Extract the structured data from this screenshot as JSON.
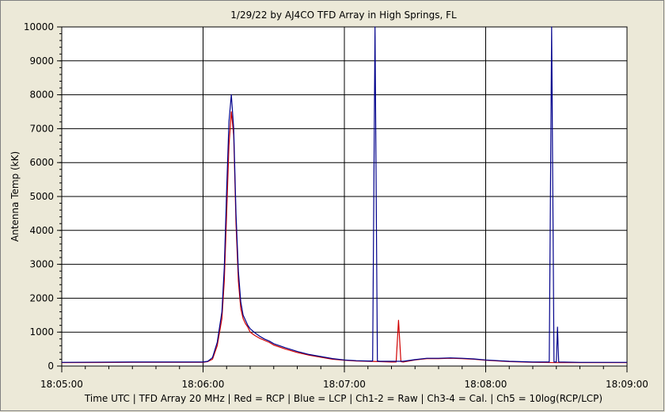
{
  "chart_data": {
    "type": "line",
    "title": "1/29/22  by  AJ4CO TFD Array  in  High Springs, FL",
    "xlabel": "Time UTC | TFD Array 20 MHz | Red = RCP | Blue = LCP | Ch1-2 = Raw | Ch3-4 = Cal. | Ch5 = 10log(RCP/LCP)",
    "ylabel": "Antenna Temp (kK)",
    "x_range_seconds_utc": [
      "18:05:00",
      "18:09:00"
    ],
    "xlim_seconds": [
      0,
      240
    ],
    "ylim": [
      0,
      10000
    ],
    "y_ticks": [
      "0",
      "1000",
      "2000",
      "3000",
      "4000",
      "5000",
      "6000",
      "7000",
      "8000",
      "9000",
      "10000"
    ],
    "x_ticks": [
      "18:05:00",
      "18:06:00",
      "18:07:00",
      "18:08:00",
      "18:09:00"
    ],
    "grid": true,
    "series": [
      {
        "name": "Red = RCP",
        "color": "#d00000",
        "x": [
          0,
          30,
          60,
          62,
          64,
          66,
          68,
          69,
          70,
          71,
          72,
          73,
          74,
          75,
          76,
          77,
          78,
          79,
          80,
          82,
          84,
          86,
          88,
          90,
          95,
          100,
          105,
          110,
          115,
          120,
          125,
          130,
          135,
          140,
          142,
          143,
          144,
          145,
          150,
          155,
          160,
          165,
          170,
          175,
          180,
          190,
          200,
          210,
          220,
          230,
          240
        ],
        "y": [
          100,
          110,
          110,
          130,
          200,
          600,
          1400,
          2500,
          4500,
          6500,
          7500,
          6800,
          4200,
          2500,
          1700,
          1400,
          1250,
          1150,
          1000,
          900,
          820,
          760,
          700,
          620,
          500,
          400,
          320,
          260,
          200,
          170,
          150,
          140,
          130,
          120,
          120,
          1350,
          130,
          120,
          180,
          220,
          220,
          230,
          220,
          200,
          170,
          130,
          110,
          100,
          100,
          100,
          100
        ]
      },
      {
        "name": "Blue = LCP",
        "color": "#00008b",
        "x": [
          0,
          30,
          60,
          62,
          64,
          66,
          68,
          69,
          70,
          71,
          72,
          73,
          74,
          75,
          76,
          77,
          78,
          79,
          80,
          82,
          84,
          86,
          88,
          90,
          95,
          100,
          105,
          110,
          115,
          120,
          125,
          130,
          132,
          133,
          134,
          135,
          140,
          145,
          150,
          155,
          160,
          165,
          170,
          175,
          180,
          190,
          200,
          207,
          208,
          209,
          210,
          210.5,
          211,
          220,
          230,
          240
        ],
        "y": [
          110,
          120,
          120,
          140,
          250,
          700,
          1600,
          2900,
          5200,
          7200,
          8000,
          7000,
          4500,
          2800,
          1900,
          1500,
          1350,
          1200,
          1100,
          980,
          880,
          800,
          740,
          660,
          540,
          430,
          340,
          280,
          220,
          180,
          160,
          150,
          150,
          10000,
          150,
          140,
          140,
          140,
          190,
          230,
          230,
          240,
          230,
          210,
          180,
          140,
          120,
          120,
          10000,
          120,
          120,
          1150,
          120,
          110,
          110,
          110
        ]
      }
    ]
  }
}
